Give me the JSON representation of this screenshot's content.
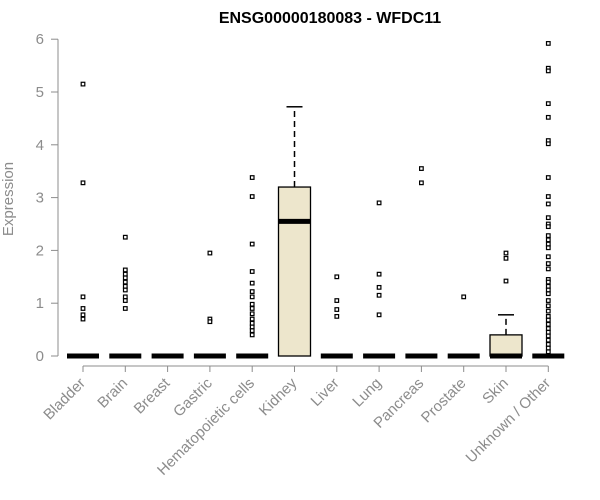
{
  "chart_data": {
    "type": "boxplot",
    "title": "ENSG00000180083 - WFDC11",
    "ylabel": "Expression",
    "xlabel": "",
    "ylim": [
      0,
      6
    ],
    "yticks": [
      "0",
      "1",
      "2",
      "3",
      "4",
      "5",
      "6"
    ],
    "categories": [
      "Bladder",
      "Brain",
      "Breast",
      "Gastric",
      "Hematopoietic cells",
      "Kidney",
      "Liver",
      "Lung",
      "Pancreas",
      "Prostate",
      "Skin",
      "Unknown / Other"
    ],
    "box_fill": "#ede6cc",
    "boxes": [
      {
        "q1": 0,
        "median": 0,
        "q3": 0,
        "whisker_low": 0,
        "whisker_high": 0,
        "outliers": [
          5.15,
          3.28,
          1.12,
          0.9,
          0.78,
          0.7
        ]
      },
      {
        "q1": 0,
        "median": 0,
        "q3": 0,
        "whisker_low": 0,
        "whisker_high": 0,
        "outliers": [
          2.25,
          1.63,
          1.55,
          1.48,
          1.4,
          1.32,
          1.25,
          1.12,
          1.05,
          0.9
        ]
      },
      {
        "q1": 0,
        "median": 0,
        "q3": 0,
        "whisker_low": 0,
        "whisker_high": 0,
        "outliers": []
      },
      {
        "q1": 0,
        "median": 0,
        "q3": 0,
        "whisker_low": 0,
        "whisker_high": 0,
        "outliers": [
          1.95,
          0.7,
          0.65
        ]
      },
      {
        "q1": 0,
        "median": 0,
        "q3": 0,
        "whisker_low": 0,
        "whisker_high": 0,
        "outliers": [
          3.38,
          3.02,
          2.12,
          1.6,
          1.38,
          1.22,
          1.12,
          0.98,
          0.9,
          0.8,
          0.7,
          0.62,
          0.55,
          0.48,
          0.4
        ]
      },
      {
        "q1": 0,
        "median": 2.55,
        "q3": 3.2,
        "whisker_low": 0,
        "whisker_high": 4.72,
        "outliers": []
      },
      {
        "q1": 0,
        "median": 0,
        "q3": 0,
        "whisker_low": 0,
        "whisker_high": 0,
        "outliers": [
          1.5,
          1.05,
          0.88,
          0.75
        ]
      },
      {
        "q1": 0,
        "median": 0,
        "q3": 0,
        "whisker_low": 0,
        "whisker_high": 0,
        "outliers": [
          2.9,
          1.55,
          1.3,
          1.15,
          0.78
        ]
      },
      {
        "q1": 0,
        "median": 0,
        "q3": 0,
        "whisker_low": 0,
        "whisker_high": 0,
        "outliers": [
          3.55,
          3.28
        ]
      },
      {
        "q1": 0,
        "median": 0,
        "q3": 0,
        "whisker_low": 0,
        "whisker_high": 0,
        "outliers": [
          1.12
        ]
      },
      {
        "q1": 0,
        "median": 0,
        "q3": 0.4,
        "whisker_low": 0,
        "whisker_high": 0.78,
        "outliers": [
          1.95,
          1.85,
          1.42
        ]
      },
      {
        "q1": 0,
        "median": 0,
        "q3": 0,
        "whisker_low": 0,
        "whisker_high": 0,
        "outliers": [
          5.92,
          5.45,
          5.4,
          4.78,
          4.52,
          4.08,
          4.02,
          3.38,
          3.02,
          2.88,
          2.62,
          2.5,
          2.45,
          2.28,
          2.2,
          2.12,
          2.05,
          1.88,
          1.75,
          1.65,
          1.45,
          1.4,
          1.32,
          1.25,
          1.18,
          1.05,
          0.95,
          0.85,
          0.75,
          0.68,
          0.6,
          0.52,
          0.45,
          0.38,
          0.3,
          0.22,
          0.15,
          0.08
        ]
      }
    ]
  }
}
